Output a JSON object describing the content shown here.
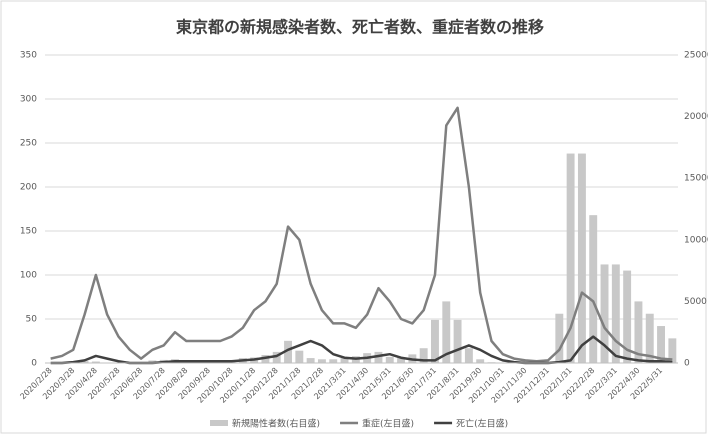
{
  "chart_data": {
    "type": "bar_line",
    "title": "東京都の新規感染者数、死亡者数、重症者数の推移",
    "categories": [
      "2020/2/28",
      null,
      "2020/3/28",
      null,
      "2020/4/28",
      null,
      "2020/5/28",
      null,
      "2020/6/28",
      null,
      "2020/7/28",
      null,
      "2020/8/28",
      null,
      "2020/9/28",
      null,
      "2020/10/28",
      null,
      "2020/11/28",
      null,
      "2020/12/28",
      null,
      "2021/1/28",
      null,
      "2021/2/28",
      null,
      "2021/3/31",
      null,
      "2021/4/30",
      null,
      "2021/5/31",
      null,
      "2021/6/30",
      null,
      "2021/7/31",
      null,
      "2021/8/31",
      null,
      "2021/9/30",
      null,
      "2021/10/31",
      null,
      "2021/11/30",
      null,
      "2021/12/31",
      null,
      "2022/1/31",
      null,
      "2022/2/28",
      null,
      "2022/3/31",
      null,
      "2022/4/30",
      null,
      "2022/5/31",
      null
    ],
    "series": [
      {
        "name": "新規陽性者数(右目盛)",
        "color": "#c8c8c8",
        "kind": "bar",
        "axis": "y2",
        "values": [
          0,
          20,
          60,
          150,
          120,
          30,
          10,
          20,
          50,
          200,
          250,
          300,
          200,
          180,
          150,
          180,
          180,
          400,
          450,
          650,
          900,
          1800,
          1000,
          400,
          300,
          300,
          400,
          550,
          800,
          900,
          500,
          400,
          700,
          1200,
          3500,
          5000,
          3500,
          1200,
          300,
          60,
          30,
          20,
          15,
          20,
          80,
          4000,
          17000,
          17000,
          12000,
          8000,
          8000,
          7500,
          5000,
          4000,
          3000,
          2000
        ]
      },
      {
        "name": "重症(左目盛)",
        "color": "#7f7f7f",
        "kind": "line",
        "values": [
          5,
          8,
          15,
          55,
          100,
          55,
          30,
          15,
          5,
          15,
          20,
          35,
          25,
          25,
          25,
          25,
          30,
          40,
          60,
          70,
          90,
          155,
          140,
          90,
          60,
          45,
          45,
          40,
          55,
          85,
          70,
          50,
          45,
          60,
          100,
          270,
          290,
          200,
          80,
          25,
          10,
          5,
          3,
          2,
          3,
          15,
          40,
          80,
          70,
          40,
          25,
          15,
          10,
          8,
          5,
          4
        ]
      },
      {
        "name": "死亡(左目盛)",
        "color": "#404040",
        "kind": "line",
        "values": [
          0,
          0,
          1,
          3,
          8,
          5,
          2,
          0,
          0,
          0,
          1,
          2,
          2,
          2,
          2,
          2,
          2,
          3,
          4,
          6,
          8,
          15,
          20,
          25,
          20,
          10,
          6,
          5,
          6,
          8,
          10,
          6,
          4,
          3,
          3,
          10,
          15,
          20,
          15,
          8,
          3,
          1,
          0,
          0,
          0,
          1,
          3,
          20,
          30,
          20,
          8,
          5,
          3,
          2,
          2,
          1
        ]
      }
    ],
    "ylim": [
      0,
      350
    ],
    "yticks": [
      0,
      50,
      100,
      150,
      200,
      250,
      300,
      350
    ],
    "y2lim": [
      0,
      25000
    ],
    "y2ticks": [
      0,
      5000,
      10000,
      15000,
      20000,
      25000
    ],
    "grid": true,
    "legend": "bottom"
  }
}
